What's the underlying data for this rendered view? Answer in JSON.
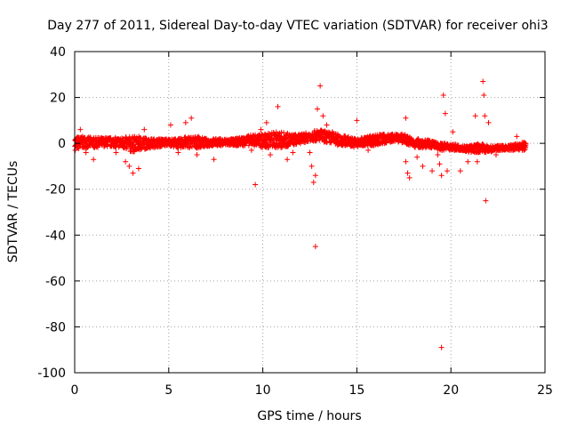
{
  "chart_data": {
    "type": "scatter",
    "title": "Day 277 of 2011, Sidereal Day-to-day VTEC variation (SDTVAR) for receiver ohi3",
    "xlabel": "GPS time / hours",
    "ylabel": "SDTVAR / TECUs",
    "xlim": [
      0,
      25
    ],
    "ylim": [
      -100,
      40
    ],
    "xticks": [
      0,
      5,
      10,
      15,
      20,
      25
    ],
    "yticks": [
      -100,
      -80,
      -60,
      -40,
      -20,
      0,
      20,
      40
    ],
    "grid": true,
    "marker": "+",
    "series": [
      {
        "name": "SDTVAR",
        "color": "#ff0000",
        "band": {
          "x": [
            0,
            0.5,
            1,
            1.5,
            2,
            2.5,
            3,
            3.5,
            4,
            4.5,
            5,
            5.5,
            6,
            6.5,
            7,
            7.5,
            8,
            8.5,
            9,
            9.5,
            10,
            10.5,
            11,
            11.5,
            12,
            12.5,
            13,
            13.5,
            14,
            14.5,
            15,
            15.5,
            16,
            16.5,
            17,
            17.5,
            18,
            18.5,
            19,
            19.5,
            20,
            20.5,
            21,
            21.5,
            22,
            22.5,
            23,
            23.5,
            24
          ],
          "lo": [
            -3,
            -2,
            -2,
            -1.5,
            -1.5,
            -2,
            -4,
            -3,
            -2,
            -1.5,
            -1,
            -2,
            -2,
            -2,
            -1.5,
            -1,
            -1,
            -1,
            -1,
            -1,
            -2,
            -2,
            -2,
            -1,
            0,
            1,
            1,
            0,
            -1,
            -1,
            -2,
            -1,
            -1,
            0,
            1,
            0,
            -2,
            -2,
            -2,
            -3,
            -3,
            -3,
            -4,
            -4,
            -4,
            -3,
            -3,
            -3,
            -3
          ],
          "hi": [
            3,
            3,
            2.5,
            2.5,
            2.5,
            2.5,
            3,
            3,
            2,
            2,
            2,
            2,
            3,
            3,
            2,
            2,
            2,
            2,
            3,
            4,
            4,
            5,
            5,
            4,
            4,
            5,
            6,
            5,
            4,
            3,
            2,
            3,
            4,
            4,
            4,
            4,
            2,
            2,
            1,
            0,
            0,
            -1,
            -1,
            0,
            -1,
            -1,
            -1,
            0,
            1
          ]
        },
        "outliers": [
          {
            "x": 0.3,
            "y": 6
          },
          {
            "x": 0.6,
            "y": -4
          },
          {
            "x": 1.0,
            "y": -7
          },
          {
            "x": 2.2,
            "y": -4
          },
          {
            "x": 2.7,
            "y": -8
          },
          {
            "x": 2.9,
            "y": -10
          },
          {
            "x": 3.1,
            "y": -13
          },
          {
            "x": 3.4,
            "y": -11
          },
          {
            "x": 3.7,
            "y": 6
          },
          {
            "x": 5.1,
            "y": 8
          },
          {
            "x": 5.5,
            "y": -4
          },
          {
            "x": 5.9,
            "y": 9
          },
          {
            "x": 6.2,
            "y": 11
          },
          {
            "x": 6.5,
            "y": -5
          },
          {
            "x": 7.4,
            "y": -7
          },
          {
            "x": 9.4,
            "y": -3
          },
          {
            "x": 9.6,
            "y": -18
          },
          {
            "x": 9.9,
            "y": 6
          },
          {
            "x": 10.2,
            "y": 9
          },
          {
            "x": 10.4,
            "y": -5
          },
          {
            "x": 10.8,
            "y": 16
          },
          {
            "x": 11.3,
            "y": -7
          },
          {
            "x": 11.6,
            "y": -4
          },
          {
            "x": 12.2,
            "y": 4
          },
          {
            "x": 12.5,
            "y": -4
          },
          {
            "x": 12.6,
            "y": -10
          },
          {
            "x": 12.7,
            "y": -17
          },
          {
            "x": 12.8,
            "y": -14
          },
          {
            "x": 12.9,
            "y": 15
          },
          {
            "x": 13.05,
            "y": 25
          },
          {
            "x": 13.2,
            "y": 12
          },
          {
            "x": 12.8,
            "y": -45
          },
          {
            "x": 13.4,
            "y": 8
          },
          {
            "x": 13.7,
            "y": 5
          },
          {
            "x": 15.0,
            "y": 10
          },
          {
            "x": 15.6,
            "y": -3
          },
          {
            "x": 17.6,
            "y": -8
          },
          {
            "x": 17.7,
            "y": -13
          },
          {
            "x": 17.8,
            "y": -15
          },
          {
            "x": 17.6,
            "y": 11
          },
          {
            "x": 18.2,
            "y": -6
          },
          {
            "x": 18.5,
            "y": -10
          },
          {
            "x": 19.0,
            "y": -12
          },
          {
            "x": 19.3,
            "y": -5
          },
          {
            "x": 19.4,
            "y": -9
          },
          {
            "x": 19.5,
            "y": -14
          },
          {
            "x": 19.6,
            "y": 21
          },
          {
            "x": 19.7,
            "y": 13
          },
          {
            "x": 19.8,
            "y": -12
          },
          {
            "x": 19.5,
            "y": -89
          },
          {
            "x": 20.1,
            "y": 5
          },
          {
            "x": 20.5,
            "y": -12
          },
          {
            "x": 20.9,
            "y": -8
          },
          {
            "x": 21.3,
            "y": 12
          },
          {
            "x": 21.4,
            "y": -8
          },
          {
            "x": 21.7,
            "y": 27
          },
          {
            "x": 21.75,
            "y": 21
          },
          {
            "x": 21.8,
            "y": 12
          },
          {
            "x": 21.85,
            "y": -25
          },
          {
            "x": 22.0,
            "y": 9
          },
          {
            "x": 22.4,
            "y": -5
          },
          {
            "x": 23.5,
            "y": 3
          },
          {
            "x": 23.8,
            "y": -3
          }
        ]
      }
    ]
  }
}
